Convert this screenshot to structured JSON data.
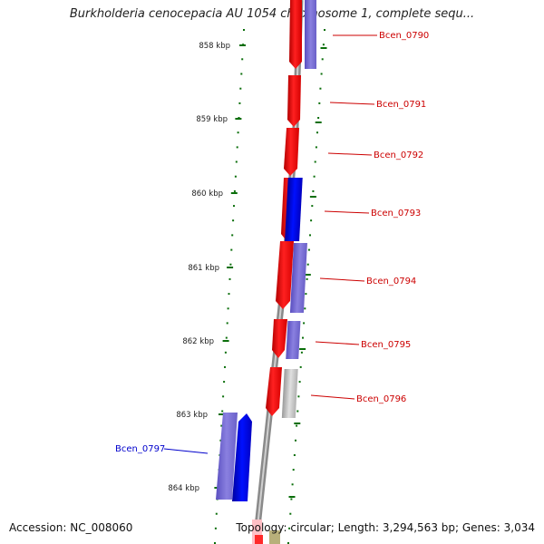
{
  "title": "Burkholderia cenocepacia AU 1054 chromosome 1, complete sequ...",
  "footer": {
    "accession": "Accession: NC_008060",
    "summary": "Topology: circular; Length: 3,294,563 bp; Genes: 3,034"
  },
  "colors": {
    "forward": "#ff1a1a",
    "reverse_dark": "#0000ee",
    "reverse_light": "#7a6fd6",
    "gray": "#bdbdbd",
    "tick": "#0a6e0a",
    "label_red": "#cc0000",
    "label_blue": "#0000cc"
  },
  "scale_labels": [
    "858 kbp",
    "859 kbp",
    "860 kbp",
    "861 kbp",
    "862 kbp",
    "863 kbp",
    "864 kbp"
  ],
  "gene_labels": [
    {
      "name": "Bcen_0790",
      "color": "red"
    },
    {
      "name": "Bcen_0791",
      "color": "red"
    },
    {
      "name": "Bcen_0792",
      "color": "red"
    },
    {
      "name": "Bcen_0793",
      "color": "red"
    },
    {
      "name": "Bcen_0794",
      "color": "red"
    },
    {
      "name": "Bcen_0795",
      "color": "red"
    },
    {
      "name": "Bcen_0796",
      "color": "red"
    },
    {
      "name": "Bcen_0797",
      "color": "blue"
    }
  ]
}
